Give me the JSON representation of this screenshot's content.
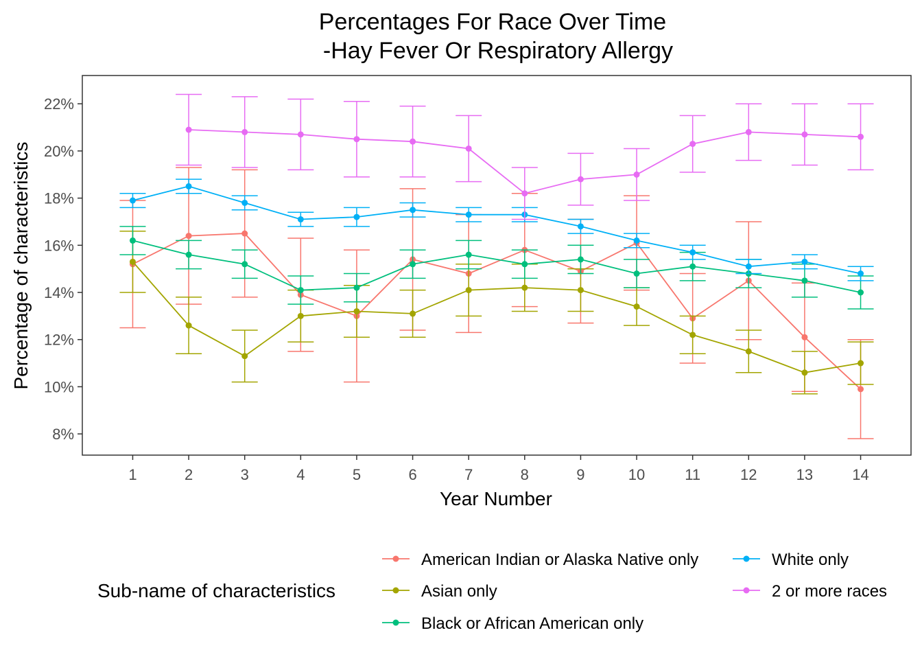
{
  "chart_data": {
    "type": "line",
    "title_line1": "Percentages For Race Over Time",
    "title_line2": "-Hay Fever Or Respiratory Allergy",
    "xlabel": "Year Number",
    "ylabel": "Percentage of characteristics",
    "x": [
      1,
      2,
      3,
      4,
      5,
      6,
      7,
      8,
      9,
      10,
      11,
      12,
      13,
      14
    ],
    "x_tick_labels": [
      "1",
      "2",
      "3",
      "4",
      "5",
      "6",
      "7",
      "8",
      "9",
      "10",
      "11",
      "12",
      "13",
      "14"
    ],
    "xlim": [
      0.1,
      14.9
    ],
    "ylim": [
      7.1,
      23.2
    ],
    "y_ticks": [
      8,
      10,
      12,
      14,
      16,
      18,
      20,
      22
    ],
    "y_tick_labels": [
      "8%",
      "10%",
      "12%",
      "14%",
      "16%",
      "18%",
      "20%",
      "22%"
    ],
    "grid": false,
    "error_bars": true,
    "legend": {
      "title": "Sub-name of characteristics",
      "position": "bottom"
    },
    "series": [
      {
        "name": "American Indian or Alaska Native only",
        "color": "#F8766D",
        "values": [
          15.2,
          16.4,
          16.5,
          13.9,
          13.0,
          15.4,
          14.8,
          15.8,
          14.9,
          16.1,
          12.9,
          14.5,
          12.1,
          9.9
        ],
        "lower": [
          12.5,
          13.5,
          13.8,
          11.5,
          10.2,
          12.4,
          12.3,
          13.4,
          12.7,
          14.1,
          11.0,
          12.0,
          9.8,
          7.8
        ],
        "upper": [
          17.9,
          19.3,
          19.2,
          16.3,
          15.8,
          18.4,
          17.3,
          18.2,
          17.1,
          18.1,
          14.8,
          17.0,
          14.4,
          12.0
        ]
      },
      {
        "name": "Asian only",
        "color": "#A3A500",
        "values": [
          15.3,
          12.6,
          11.3,
          13.0,
          13.2,
          13.1,
          14.1,
          14.2,
          14.1,
          13.4,
          12.2,
          11.5,
          10.6,
          11.0
        ],
        "lower": [
          14.0,
          11.4,
          10.2,
          11.9,
          12.1,
          12.1,
          13.0,
          13.2,
          13.2,
          12.6,
          11.4,
          10.6,
          9.7,
          10.1
        ],
        "upper": [
          16.6,
          13.8,
          12.4,
          14.1,
          14.3,
          14.1,
          15.2,
          15.2,
          15.0,
          14.2,
          13.0,
          12.4,
          11.5,
          11.9
        ]
      },
      {
        "name": "Black or African American only",
        "color": "#00BF7D",
        "values": [
          16.2,
          15.6,
          15.2,
          14.1,
          14.2,
          15.2,
          15.6,
          15.2,
          15.4,
          14.8,
          15.1,
          14.8,
          14.5,
          14.0
        ],
        "lower": [
          15.6,
          15.0,
          14.6,
          13.5,
          13.6,
          14.6,
          15.0,
          14.6,
          14.8,
          14.2,
          14.5,
          14.2,
          13.8,
          13.3
        ],
        "upper": [
          16.8,
          16.2,
          15.8,
          14.7,
          14.8,
          15.8,
          16.2,
          15.8,
          16.0,
          15.4,
          15.7,
          15.4,
          15.2,
          14.7
        ]
      },
      {
        "name": "White only",
        "color": "#00B0F6",
        "values": [
          17.9,
          18.5,
          17.8,
          17.1,
          17.2,
          17.5,
          17.3,
          17.3,
          16.8,
          16.2,
          15.7,
          15.1,
          15.3,
          14.8
        ],
        "lower": [
          17.6,
          18.2,
          17.5,
          16.8,
          16.8,
          17.2,
          17.0,
          17.0,
          16.5,
          15.9,
          15.4,
          14.8,
          15.0,
          14.5
        ],
        "upper": [
          18.2,
          18.8,
          18.1,
          17.4,
          17.6,
          17.8,
          17.6,
          17.6,
          17.1,
          16.5,
          16.0,
          15.4,
          15.6,
          15.1
        ]
      },
      {
        "name": "2 or more races",
        "color": "#E76BF3",
        "values": [
          null,
          20.9,
          20.8,
          20.7,
          20.5,
          20.4,
          20.1,
          18.2,
          18.8,
          19.0,
          20.3,
          20.8,
          20.7,
          20.6
        ],
        "lower": [
          null,
          19.4,
          19.3,
          19.2,
          18.9,
          18.9,
          18.7,
          17.1,
          17.7,
          17.9,
          19.1,
          19.6,
          19.4,
          19.2
        ],
        "upper": [
          null,
          22.4,
          22.3,
          22.2,
          22.1,
          21.9,
          21.5,
          19.3,
          19.9,
          20.1,
          21.5,
          22.0,
          22.0,
          22.0
        ]
      }
    ]
  }
}
